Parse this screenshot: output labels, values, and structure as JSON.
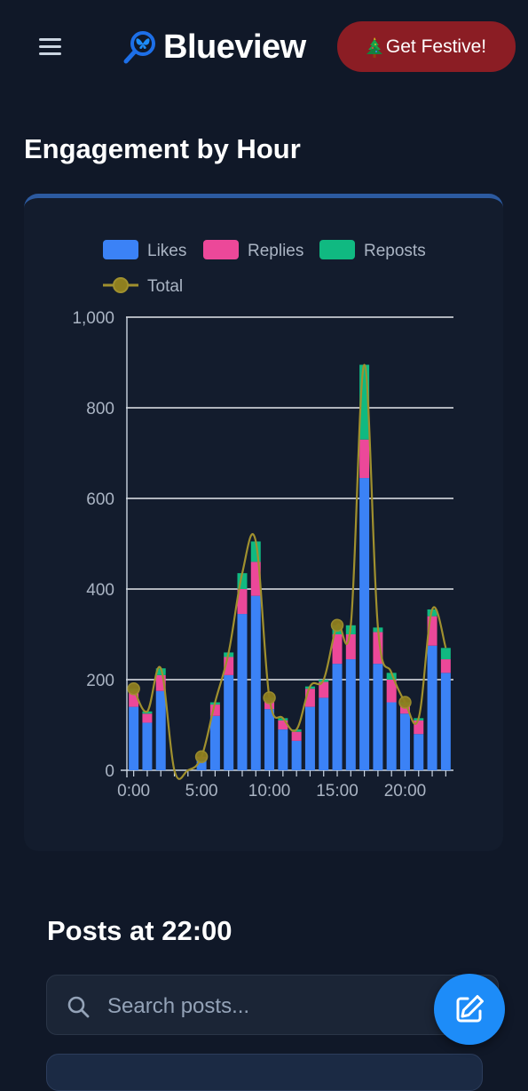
{
  "app": {
    "name": "Blueview",
    "logo_icon": "butterfly-search-icon"
  },
  "header": {
    "menu_icon": "hamburger-menu-icon",
    "festive_button": "Get Festive!",
    "festive_icon": "christmas-tree-icon"
  },
  "engagement": {
    "title": "Engagement by Hour"
  },
  "chart_data": {
    "type": "bar",
    "stacked": true,
    "legend_position": "top",
    "grid": true,
    "ylim": [
      0,
      1000
    ],
    "y_ticks": [
      "0",
      "200",
      "400",
      "600",
      "800",
      "1,000"
    ],
    "x_tick_labels": [
      "0:00",
      "5:00",
      "10:00",
      "15:00",
      "20:00"
    ],
    "categories": [
      "0:00",
      "1:00",
      "2:00",
      "3:00",
      "4:00",
      "5:00",
      "6:00",
      "7:00",
      "8:00",
      "9:00",
      "10:00",
      "11:00",
      "12:00",
      "13:00",
      "14:00",
      "15:00",
      "16:00",
      "17:00",
      "18:00",
      "19:00",
      "20:00",
      "21:00",
      "22:00",
      "23:00"
    ],
    "series": [
      {
        "name": "Likes",
        "color": "#3b82f6",
        "values": [
          140,
          105,
          175,
          0,
          0,
          25,
          120,
          210,
          345,
          385,
          135,
          90,
          65,
          140,
          160,
          235,
          245,
          645,
          235,
          150,
          125,
          80,
          275,
          215
        ]
      },
      {
        "name": "Replies",
        "color": "#ec4899",
        "values": [
          35,
          20,
          35,
          0,
          0,
          5,
          25,
          40,
          55,
          75,
          20,
          20,
          20,
          40,
          35,
          65,
          55,
          85,
          70,
          50,
          20,
          30,
          65,
          30
        ]
      },
      {
        "name": "Reposts",
        "color": "#10b981",
        "values": [
          5,
          5,
          15,
          0,
          0,
          0,
          5,
          10,
          35,
          45,
          5,
          5,
          5,
          5,
          5,
          20,
          20,
          165,
          10,
          15,
          5,
          5,
          15,
          25
        ]
      }
    ],
    "line": {
      "name": "Total",
      "color": "#a0902e",
      "values": [
        180,
        130,
        225,
        0,
        0,
        30,
        150,
        260,
        435,
        505,
        160,
        115,
        90,
        185,
        200,
        320,
        320,
        895,
        315,
        215,
        150,
        115,
        355,
        270
      ]
    },
    "highlight_points": [
      0,
      5,
      10,
      15,
      20
    ]
  },
  "posts": {
    "title": "Posts at 22:00",
    "search_placeholder": "Search posts...",
    "search_icon": "search-icon",
    "compose_icon": "compose-icon"
  }
}
